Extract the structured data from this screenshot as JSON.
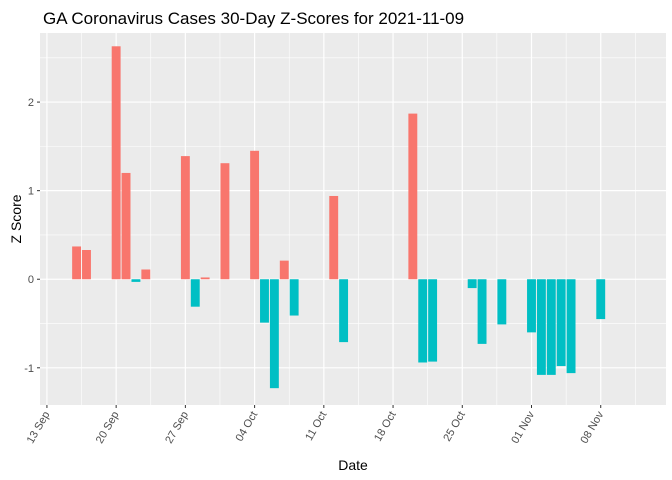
{
  "chart_data": {
    "type": "bar",
    "title": "GA Coronavirus Cases 30-Day Z-Scores for 2021-11-09",
    "xlabel": "Date",
    "ylabel": "Z Score",
    "ylim": [
      -1.42,
      2.78
    ],
    "y_ticks": [
      -1,
      0,
      1,
      2
    ],
    "x_range_days_from_sep13": [
      -0.7,
      62.6
    ],
    "x_ticks": [
      {
        "label": "13 Sep",
        "date": "2021-09-13"
      },
      {
        "label": "20 Sep",
        "date": "2021-09-20"
      },
      {
        "label": "27 Sep",
        "date": "2021-09-27"
      },
      {
        "label": "04 Oct",
        "date": "2021-10-04"
      },
      {
        "label": "11 Oct",
        "date": "2021-10-11"
      },
      {
        "label": "18 Oct",
        "date": "2021-10-18"
      },
      {
        "label": "25 Oct",
        "date": "2021-10-25"
      },
      {
        "label": "01 Nov",
        "date": "2021-11-01"
      },
      {
        "label": "08 Nov",
        "date": "2021-11-08"
      }
    ],
    "colors": {
      "positive": "#F8766D",
      "negative": "#00BFC4"
    },
    "grid": true,
    "panel_background": "#EBEBEB",
    "points": [
      {
        "date": "2021-09-16",
        "value": 0.37
      },
      {
        "date": "2021-09-17",
        "value": 0.33
      },
      {
        "date": "2021-09-20",
        "value": 2.63
      },
      {
        "date": "2021-09-21",
        "value": 1.2
      },
      {
        "date": "2021-09-22",
        "value": -0.03
      },
      {
        "date": "2021-09-23",
        "value": 0.11
      },
      {
        "date": "2021-09-27",
        "value": 1.39
      },
      {
        "date": "2021-09-28",
        "value": -0.31
      },
      {
        "date": "2021-09-29",
        "value": 0.02
      },
      {
        "date": "2021-10-01",
        "value": 1.31
      },
      {
        "date": "2021-10-04",
        "value": 1.45
      },
      {
        "date": "2021-10-05",
        "value": -0.49
      },
      {
        "date": "2021-10-06",
        "value": -1.23
      },
      {
        "date": "2021-10-07",
        "value": 0.21
      },
      {
        "date": "2021-10-08",
        "value": -0.41
      },
      {
        "date": "2021-10-12",
        "value": 0.94
      },
      {
        "date": "2021-10-13",
        "value": -0.71
      },
      {
        "date": "2021-10-20",
        "value": 1.87
      },
      {
        "date": "2021-10-21",
        "value": -0.94
      },
      {
        "date": "2021-10-22",
        "value": -0.93
      },
      {
        "date": "2021-10-26",
        "value": -0.1
      },
      {
        "date": "2021-10-27",
        "value": -0.73
      },
      {
        "date": "2021-10-29",
        "value": -0.51
      },
      {
        "date": "2021-11-01",
        "value": -0.6
      },
      {
        "date": "2021-11-02",
        "value": -1.08
      },
      {
        "date": "2021-11-03",
        "value": -1.08
      },
      {
        "date": "2021-11-04",
        "value": -0.98
      },
      {
        "date": "2021-11-05",
        "value": -1.06
      },
      {
        "date": "2021-11-08",
        "value": -0.45
      }
    ]
  }
}
